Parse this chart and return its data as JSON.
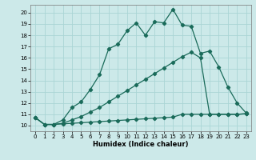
{
  "xlabel": "Humidex (Indice chaleur)",
  "ylabel": "",
  "xlim": [
    -0.5,
    23.5
  ],
  "ylim": [
    9.5,
    20.7
  ],
  "xticks": [
    0,
    1,
    2,
    3,
    4,
    5,
    6,
    7,
    8,
    9,
    10,
    11,
    12,
    13,
    14,
    15,
    16,
    17,
    18,
    19,
    20,
    21,
    22,
    23
  ],
  "yticks": [
    10,
    11,
    12,
    13,
    14,
    15,
    16,
    17,
    18,
    19,
    20
  ],
  "bg_color": "#cce9e9",
  "grid_color": "#aad5d5",
  "line_color": "#1a6b5a",
  "line1_x": [
    0,
    1,
    2,
    3,
    4,
    5,
    6,
    7,
    8,
    9,
    10,
    11,
    12,
    13,
    14,
    15,
    16,
    17,
    18,
    19,
    20,
    21,
    22,
    23
  ],
  "line1_y": [
    10.7,
    10.1,
    10.1,
    10.5,
    11.6,
    12.1,
    13.2,
    14.5,
    16.8,
    17.2,
    18.4,
    19.1,
    18.0,
    19.2,
    19.1,
    20.3,
    18.9,
    18.8,
    16.4,
    16.6,
    15.2,
    13.4,
    12.0,
    11.1
  ],
  "line2_x": [
    0,
    1,
    2,
    3,
    4,
    5,
    6,
    7,
    8,
    9,
    10,
    11,
    12,
    13,
    14,
    15,
    16,
    17,
    18,
    19,
    20,
    21,
    22,
    23
  ],
  "line2_y": [
    10.7,
    10.1,
    10.1,
    10.15,
    10.2,
    10.25,
    10.3,
    10.35,
    10.4,
    10.45,
    10.5,
    10.55,
    10.6,
    10.65,
    10.7,
    10.75,
    11.0,
    11.0,
    11.0,
    11.0,
    11.0,
    11.0,
    11.0,
    11.05
  ],
  "line3_x": [
    0,
    1,
    2,
    3,
    4,
    5,
    6,
    7,
    8,
    9,
    10,
    11,
    12,
    13,
    14,
    15,
    16,
    17,
    18,
    19,
    20,
    21,
    22,
    23
  ],
  "line3_y": [
    10.7,
    10.1,
    10.1,
    10.2,
    10.5,
    10.8,
    11.2,
    11.6,
    12.1,
    12.6,
    13.1,
    13.6,
    14.1,
    14.6,
    15.1,
    15.6,
    16.1,
    16.5,
    16.0,
    11.0,
    11.0,
    11.0,
    11.0,
    11.05
  ]
}
